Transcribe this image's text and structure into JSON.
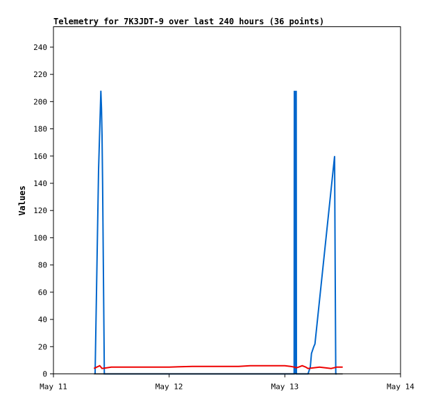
{
  "chart_data": {
    "type": "line",
    "title": "Telemetry for 7K3JDT-9 over last 240 hours (36 points)",
    "xlabel": "",
    "ylabel": "Values",
    "xlim": [
      "May 11",
      "May 14"
    ],
    "ylim": [
      0,
      255
    ],
    "x_ticks": [
      "May 11",
      "May 12",
      "May 13",
      "May 14"
    ],
    "y_ticks": [
      0,
      20,
      40,
      60,
      80,
      100,
      120,
      140,
      160,
      180,
      200,
      220,
      240
    ],
    "grid": false,
    "legend": "none",
    "series": [
      {
        "color": "#0066cc",
        "x_days": [
          0.36,
          0.39,
          0.41,
          0.415,
          0.42,
          0.425,
          0.44,
          0.45,
          1.4,
          2.08,
          2.082,
          2.085,
          2.087,
          2.09,
          2.093,
          2.095,
          2.098,
          2.1,
          2.2,
          2.22,
          2.23,
          2.25,
          2.26,
          2.43,
          2.435,
          2.44,
          2.45
        ],
        "x": [
          "May 11 08:38",
          "May 11 09:22",
          "May 11 09:50",
          "May 11 09:58",
          "May 11 10:05",
          "May 11 10:12",
          "May 11 10:34",
          "May 11 10:48",
          "May 12 09:36",
          "May 13 01:55",
          "May 13 01:58",
          "May 13 02:02",
          "May 13 02:05",
          "May 13 02:10",
          "May 13 02:14",
          "May 13 02:17",
          "May 13 02:21",
          "May 13 02:24",
          "May 13 04:48",
          "May 13 05:17",
          "May 13 05:31",
          "May 13 06:00",
          "May 13 06:14",
          "May 13 10:19",
          "May 13 10:26",
          "May 13 10:34",
          "May 13 10:48"
        ],
        "y": [
          0,
          150,
          208,
          195,
          175,
          140,
          0,
          0,
          0,
          0,
          208,
          104,
          0,
          208,
          80,
          0,
          208,
          0,
          0,
          5,
          15,
          20,
          22,
          160,
          80,
          0,
          0
        ]
      },
      {
        "color": "#ee0000",
        "x_days": [
          0.35,
          0.4,
          0.42,
          0.46,
          0.5,
          0.8,
          0.9,
          1.0,
          1.2,
          1.5,
          1.6,
          1.7,
          2.0,
          2.05,
          2.08,
          2.1,
          2.12,
          2.15,
          2.18,
          2.2,
          2.25,
          2.3,
          2.35,
          2.4,
          2.45,
          2.5
        ],
        "x": [
          "May 11 08:24",
          "May 11 09:36",
          "May 11 10:05",
          "May 11 11:02",
          "May 11 12:00",
          "May 11 19:12",
          "May 11 21:36",
          "May 12 00:00",
          "May 12 04:48",
          "May 12 12:00",
          "May 12 14:24",
          "May 12 16:48",
          "May 13 00:00",
          "May 13 01:12",
          "May 13 01:55",
          "May 13 02:24",
          "May 13 02:53",
          "May 13 03:36",
          "May 13 04:19",
          "May 13 04:48",
          "May 13 06:00",
          "May 13 07:12",
          "May 13 08:24",
          "May 13 09:36",
          "May 13 10:48",
          "May 13 12:00"
        ],
        "y": [
          4,
          6,
          4,
          4.5,
          5,
          5,
          5,
          5,
          5.5,
          5.5,
          5.5,
          6,
          6,
          5.5,
          5,
          4.5,
          5,
          6,
          5,
          4,
          4.5,
          5,
          4.5,
          4,
          5,
          5
        ]
      },
      {
        "color": "#000000",
        "x_days": [
          0.35,
          2.5
        ],
        "x": [
          "May 11 08:24",
          "May 13 12:00"
        ],
        "y": [
          0,
          0
        ]
      }
    ]
  }
}
